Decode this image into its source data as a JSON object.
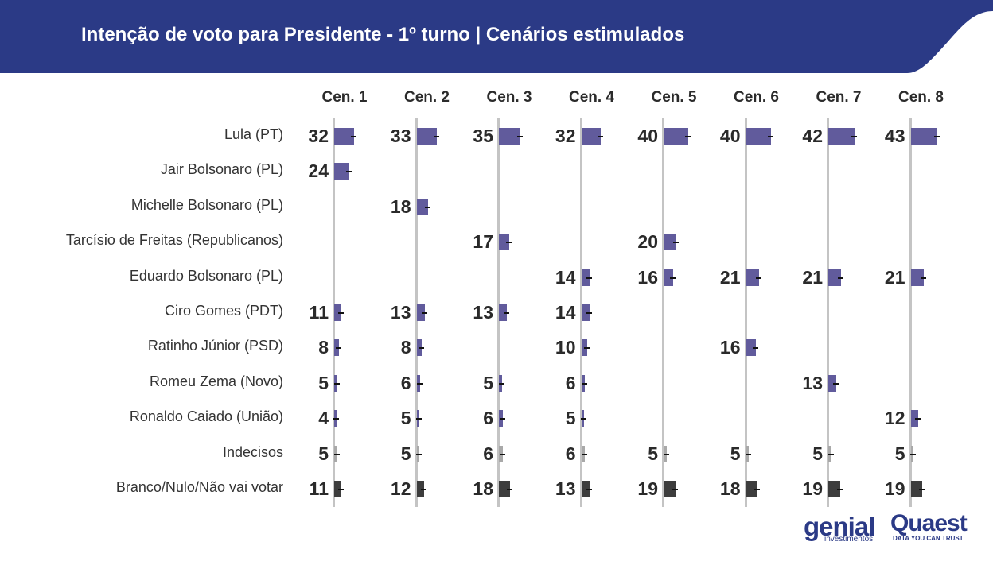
{
  "header": {
    "title": "Intenção de voto para Presidente - 1º turno | Cenários estimulados"
  },
  "colors": {
    "header": "#2b3a86",
    "candidate_bar": "#615b9c",
    "indecisos_bar": "#a9a9a9",
    "branco_bar": "#3d3d3d"
  },
  "chart_data": {
    "type": "bar",
    "title": "Intenção de voto para Presidente - 1º turno | Cenários estimulados",
    "scenarios": [
      "Cen. 1",
      "Cen. 2",
      "Cen. 3",
      "Cen. 4",
      "Cen. 5",
      "Cen. 6",
      "Cen. 7",
      "Cen. 8"
    ],
    "categories": [
      "Lula (PT)",
      "Jair Bolsonaro (PL)",
      "Michelle Bolsonaro (PL)",
      "Tarcísio de Freitas (Republicanos)",
      "Eduardo Bolsonaro (PL)",
      "Ciro Gomes (PDT)",
      "Ratinho Júnior (PSD)",
      "Romeu Zema (Novo)",
      "Ronaldo Caiado (União)",
      "Indecisos",
      "Branco/Nulo/Não vai votar"
    ],
    "series": [
      {
        "values": [
          32,
          24,
          null,
          null,
          null,
          11,
          8,
          5,
          4,
          5,
          11
        ]
      },
      {
        "values": [
          33,
          null,
          18,
          null,
          null,
          13,
          8,
          6,
          5,
          5,
          12
        ]
      },
      {
        "values": [
          35,
          null,
          null,
          17,
          null,
          13,
          null,
          5,
          6,
          6,
          18
        ]
      },
      {
        "values": [
          32,
          null,
          null,
          null,
          14,
          14,
          10,
          6,
          5,
          6,
          13
        ]
      },
      {
        "values": [
          40,
          null,
          null,
          20,
          16,
          null,
          null,
          null,
          null,
          5,
          19
        ]
      },
      {
        "values": [
          40,
          null,
          null,
          null,
          21,
          null,
          16,
          null,
          null,
          5,
          18
        ]
      },
      {
        "values": [
          42,
          null,
          null,
          null,
          21,
          null,
          null,
          13,
          null,
          5,
          19
        ]
      },
      {
        "values": [
          43,
          null,
          null,
          null,
          21,
          null,
          null,
          null,
          12,
          5,
          19
        ]
      }
    ],
    "error_bars": true
  },
  "logos": {
    "genial": "genial",
    "genial_sub": "investimentos",
    "quaest": "Quaest",
    "quaest_sub": "DATA YOU CAN TRUST"
  }
}
